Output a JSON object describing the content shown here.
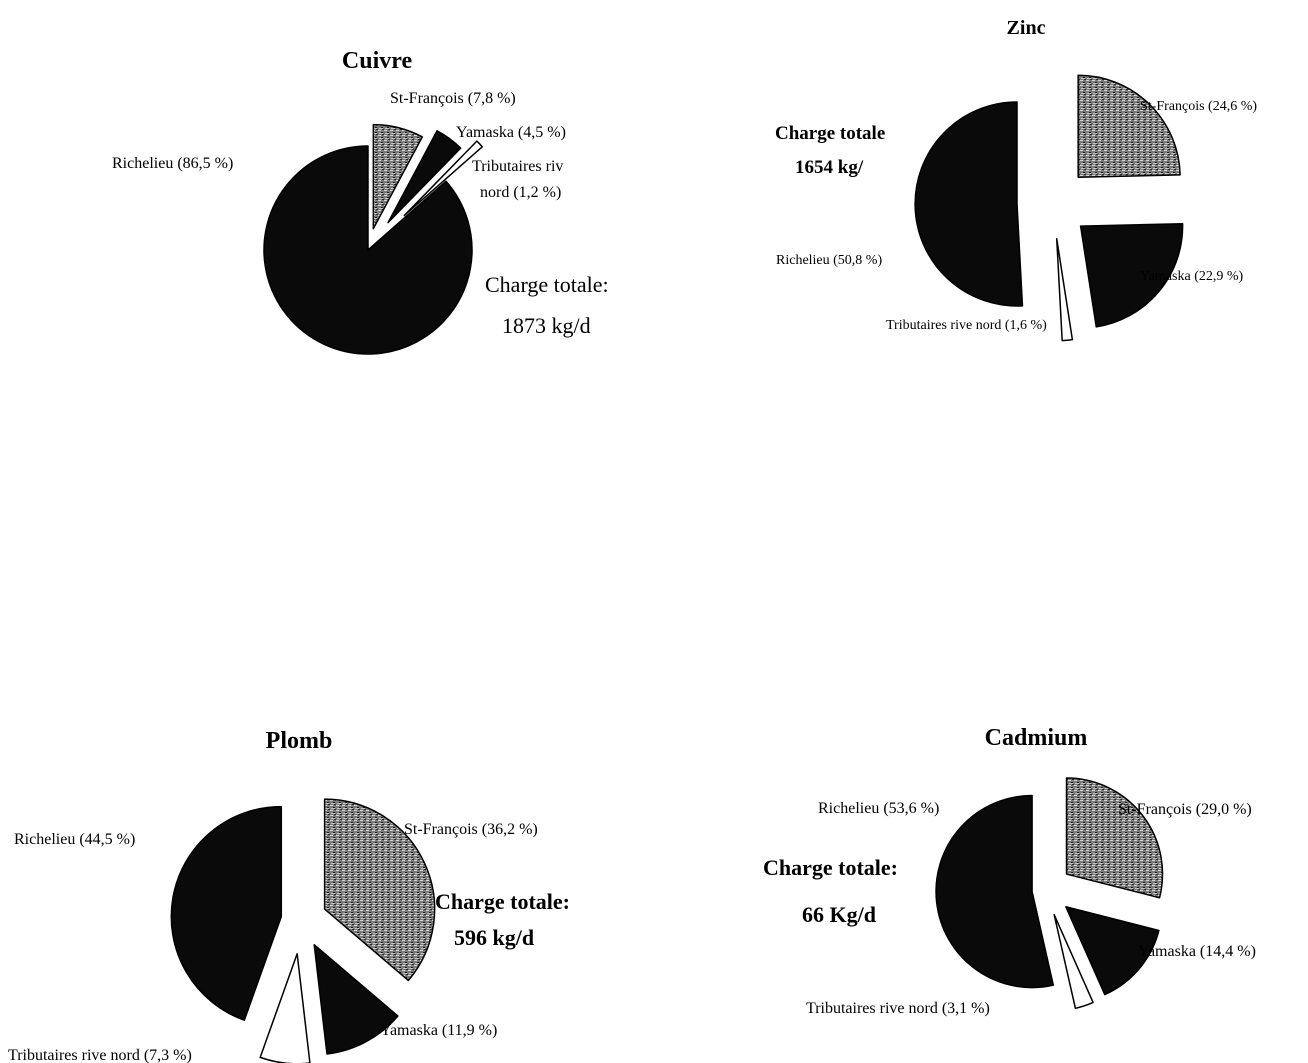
{
  "colors": {
    "black": "#0a0a0a",
    "white": "#ffffff",
    "texture": "#8a8a8a"
  },
  "chart_data": [
    {
      "type": "pie",
      "title": "Cuivre",
      "total_label": "Charge totale:",
      "total_value": "1873 kg/d",
      "slices": [
        {
          "label": "St-François (7,8 %)",
          "value": 7.8,
          "fill": "texture"
        },
        {
          "label": "Yamaska (4,5 %)",
          "value": 4.5,
          "fill": "black"
        },
        {
          "label": "Tributaires riv nord (1,2 %)",
          "label_lines": [
            "Tributaires riv",
            "nord (1,2 %)"
          ],
          "value": 1.2,
          "fill": "white"
        },
        {
          "label": "Richelieu (86,5 %)",
          "value": 86.5,
          "fill": "black"
        }
      ]
    },
    {
      "type": "pie",
      "title": "Zinc",
      "total_label": "Charge totale",
      "total_value": "1654 kg/",
      "slices": [
        {
          "label": "St-François (24,6 %)",
          "value": 24.6,
          "fill": "texture"
        },
        {
          "label": "Yamaska (22,9 %)",
          "value": 22.9,
          "fill": "black"
        },
        {
          "label": "Tributaires rive nord (1,6 %)",
          "value": 1.6,
          "fill": "white"
        },
        {
          "label": "Richelieu (50,8 %)",
          "value": 50.8,
          "fill": "black"
        }
      ]
    },
    {
      "type": "pie",
      "title": "Plomb",
      "total_label": "Charge totale:",
      "total_value": "596 kg/d",
      "slices": [
        {
          "label": "St-François (36,2 %)",
          "value": 36.2,
          "fill": "texture"
        },
        {
          "label": "Yamaska (11,9 %)",
          "value": 11.9,
          "fill": "black"
        },
        {
          "label": "Tributaires rive nord (7,3 %)",
          "value": 7.3,
          "fill": "white"
        },
        {
          "label": "Richelieu (44,5 %)",
          "value": 44.5,
          "fill": "black"
        }
      ]
    },
    {
      "type": "pie",
      "title": "Cadmium",
      "total_label": "Charge totale:",
      "total_value": "66 Kg/d",
      "slices": [
        {
          "label": "St-François (29,0 %)",
          "value": 29.0,
          "fill": "texture"
        },
        {
          "label": "Yamaska (14,4 %)",
          "value": 14.4,
          "fill": "black"
        },
        {
          "label": "Tributaires rive nord (3,1 %)",
          "value": 3.1,
          "fill": "white"
        },
        {
          "label": "Richelieu (53,6 %)",
          "value": 53.6,
          "fill": "black"
        }
      ]
    }
  ]
}
